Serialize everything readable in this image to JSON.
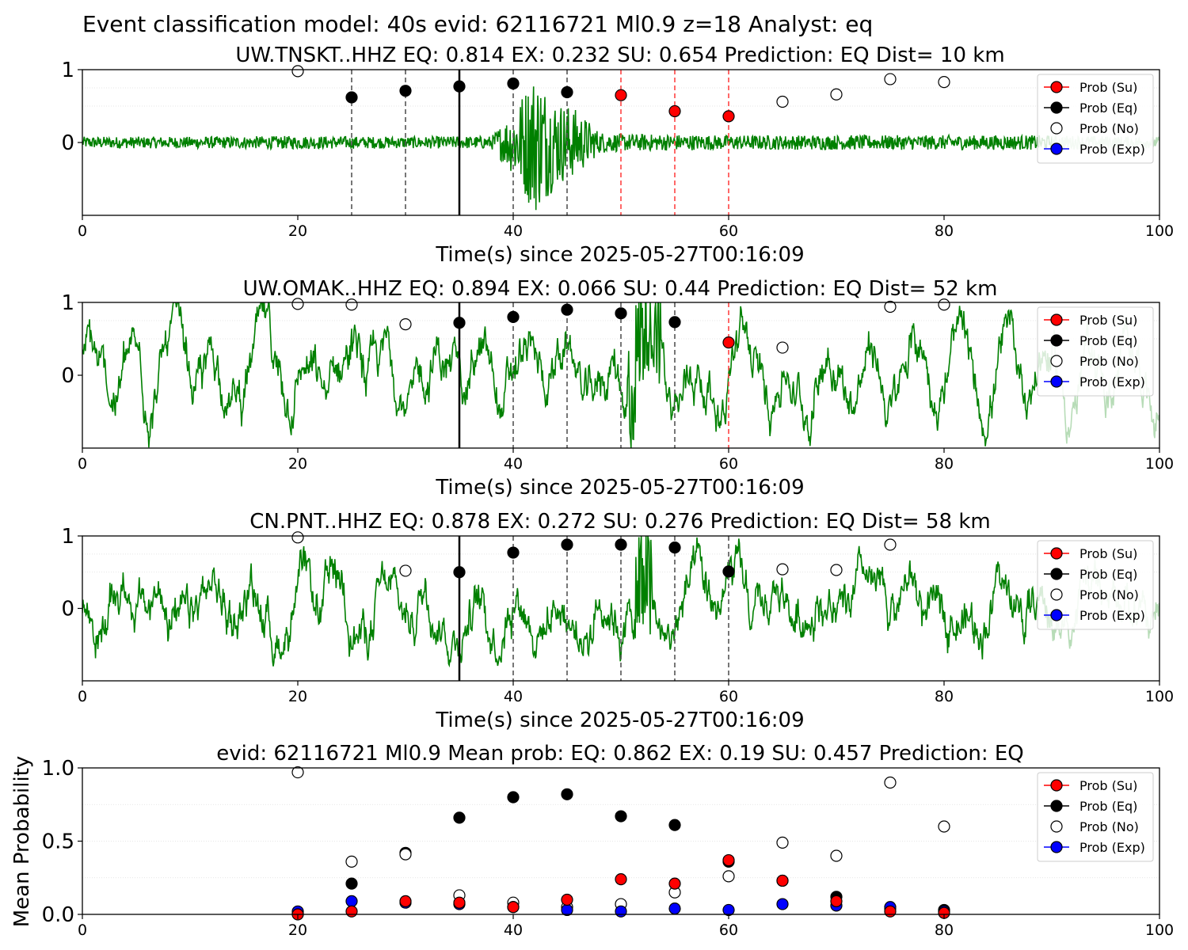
{
  "figure": {
    "suptitle": "Event classification model: 40s evid: 62116721 Ml0.9 z=18 Analyst: eq"
  },
  "legend": {
    "su": "Prob (Su)",
    "eq": "Prob (Eq)",
    "no": "Prob (No)",
    "exp": "Prob (Exp)"
  },
  "colors": {
    "waveform": "#008000",
    "waveform_faded": "#b7dcb7",
    "su": "#ff0000",
    "eq": "#000000",
    "no": "#ffffff",
    "exp": "#0000ff",
    "vline_eq": "#555555",
    "vline_su": "#ff4444"
  },
  "chart_data": [
    {
      "type": "line",
      "title": "UW.TNSKT..HHZ   EQ: 0.814  EX: 0.232  SU: 0.654   Prediction: EQ    Dist= 10 km",
      "xlabel": "Time(s) since 2025-05-27T00:16:09",
      "ylabel": "",
      "xlim": [
        0,
        100
      ],
      "ylim": [
        -1,
        1
      ],
      "xticks": [
        "0",
        "20",
        "40",
        "60",
        "80",
        "100"
      ],
      "yticks": [
        "1",
        "0"
      ],
      "legend_position": "upper right",
      "event_onset": 35,
      "vlines_eq": [
        25,
        30,
        40,
        45
      ],
      "vlines_su": [
        50,
        55,
        60
      ],
      "waveform_envelope": [
        [
          0,
          0.08
        ],
        [
          10,
          0.08
        ],
        [
          20,
          0.09
        ],
        [
          30,
          0.08
        ],
        [
          38,
          0.09
        ],
        [
          40,
          0.45
        ],
        [
          42,
          1.0
        ],
        [
          44,
          0.6
        ],
        [
          46,
          0.45
        ],
        [
          48,
          0.15
        ],
        [
          50,
          0.12
        ],
        [
          60,
          0.1
        ],
        [
          75,
          0.1
        ],
        [
          90,
          0.1
        ],
        [
          100,
          0.08
        ]
      ],
      "series": [
        {
          "name": "Prob (Su)",
          "color": "#ff0000",
          "points": [
            [
              50,
              0.65
            ],
            [
              55,
              0.43
            ],
            [
              60,
              0.36
            ]
          ]
        },
        {
          "name": "Prob (Eq)",
          "color": "#000000",
          "points": [
            [
              25,
              0.62
            ],
            [
              30,
              0.71
            ],
            [
              35,
              0.77
            ],
            [
              40,
              0.81
            ],
            [
              45,
              0.69
            ]
          ]
        },
        {
          "name": "Prob (No)",
          "color": "#ffffff",
          "points": [
            [
              20,
              0.98
            ],
            [
              65,
              0.56
            ],
            [
              70,
              0.66
            ],
            [
              75,
              0.87
            ],
            [
              80,
              0.83
            ]
          ]
        },
        {
          "name": "Prob (Exp)",
          "color": "#0000ff",
          "points": []
        }
      ]
    },
    {
      "type": "line",
      "title": "UW.OMAK..HHZ   EQ: 0.894  EX: 0.066  SU: 0.44   Prediction: EQ    Dist= 52 km",
      "xlabel": "Time(s) since 2025-05-27T00:16:09",
      "ylabel": "",
      "xlim": [
        0,
        100
      ],
      "ylim": [
        -1,
        1
      ],
      "xticks": [
        "0",
        "20",
        "40",
        "60",
        "80",
        "100"
      ],
      "yticks": [
        "1",
        "0"
      ],
      "legend_position": "upper right",
      "event_onset": 35,
      "vlines_eq": [
        40,
        45,
        50,
        55
      ],
      "vlines_su": [
        60
      ],
      "waveform_envelope": [
        [
          0,
          0.6
        ],
        [
          20,
          0.65
        ],
        [
          40,
          0.6
        ],
        [
          50,
          0.7
        ],
        [
          51,
          1.0
        ],
        [
          53,
          0.9
        ],
        [
          56,
          0.7
        ],
        [
          70,
          0.75
        ],
        [
          90,
          0.75
        ],
        [
          100,
          0.6
        ]
      ],
      "series": [
        {
          "name": "Prob (Su)",
          "color": "#ff0000",
          "points": [
            [
              60,
              0.45
            ]
          ]
        },
        {
          "name": "Prob (Eq)",
          "color": "#000000",
          "points": [
            [
              35,
              0.72
            ],
            [
              40,
              0.8
            ],
            [
              45,
              0.9
            ],
            [
              50,
              0.85
            ],
            [
              55,
              0.73
            ]
          ]
        },
        {
          "name": "Prob (No)",
          "color": "#ffffff",
          "points": [
            [
              20,
              0.98
            ],
            [
              25,
              0.97
            ],
            [
              30,
              0.7
            ],
            [
              65,
              0.38
            ],
            [
              75,
              0.94
            ],
            [
              80,
              0.97
            ]
          ]
        },
        {
          "name": "Prob (Exp)",
          "color": "#0000ff",
          "points": []
        }
      ]
    },
    {
      "type": "line",
      "title": "CN.PNT..HHZ   EQ: 0.878  EX: 0.272  SU: 0.276   Prediction: EQ    Dist= 58 km",
      "xlabel": "Time(s) since 2025-05-27T00:16:09",
      "ylabel": "",
      "xlim": [
        0,
        100
      ],
      "ylim": [
        -1,
        1
      ],
      "xticks": [
        "0",
        "20",
        "40",
        "60",
        "80",
        "100"
      ],
      "yticks": [
        "1",
        "0"
      ],
      "legend_position": "upper right",
      "event_onset": 35,
      "vlines_eq": [
        40,
        45,
        50,
        55,
        60
      ],
      "vlines_su": [],
      "waveform_envelope": [
        [
          0,
          0.45
        ],
        [
          20,
          0.5
        ],
        [
          40,
          0.5
        ],
        [
          50,
          0.55
        ],
        [
          52,
          1.0
        ],
        [
          54,
          0.7
        ],
        [
          58,
          0.5
        ],
        [
          80,
          0.45
        ],
        [
          100,
          0.45
        ]
      ],
      "series": [
        {
          "name": "Prob (Su)",
          "color": "#ff0000",
          "points": []
        },
        {
          "name": "Prob (Eq)",
          "color": "#000000",
          "points": [
            [
              35,
              0.5
            ],
            [
              40,
              0.77
            ],
            [
              45,
              0.88
            ],
            [
              50,
              0.88
            ],
            [
              55,
              0.84
            ],
            [
              60,
              0.51
            ]
          ]
        },
        {
          "name": "Prob (No)",
          "color": "#ffffff",
          "points": [
            [
              20,
              0.98
            ],
            [
              30,
              0.52
            ],
            [
              65,
              0.54
            ],
            [
              70,
              0.53
            ],
            [
              75,
              0.88
            ]
          ]
        },
        {
          "name": "Prob (Exp)",
          "color": "#0000ff",
          "points": []
        }
      ]
    },
    {
      "type": "scatter",
      "title": "evid: 62116721  Ml0.9   Mean prob:   EQ: 0.862  EX: 0.19  SU: 0.457   Prediction: EQ",
      "xlabel": "",
      "ylabel": "Mean Probability",
      "xlim": [
        0,
        100
      ],
      "ylim": [
        0,
        1
      ],
      "xticks": [
        "0",
        "20",
        "40",
        "60",
        "80",
        "100"
      ],
      "yticks": [
        "1.0",
        "0.5",
        "0.0"
      ],
      "legend_position": "upper right",
      "series": [
        {
          "name": "Prob (Eq)",
          "color": "#000000",
          "points": [
            [
              20,
              0.01
            ],
            [
              25,
              0.21
            ],
            [
              30,
              0.42
            ],
            [
              35,
              0.66
            ],
            [
              40,
              0.8
            ],
            [
              45,
              0.82
            ],
            [
              50,
              0.67
            ],
            [
              55,
              0.61
            ],
            [
              60,
              0.36
            ],
            [
              65,
              0.23
            ],
            [
              70,
              0.12
            ],
            [
              75,
              0.04
            ],
            [
              80,
              0.03
            ]
          ]
        },
        {
          "name": "Prob (No)",
          "color": "#ffffff",
          "points": [
            [
              20,
              0.97
            ],
            [
              25,
              0.36
            ],
            [
              30,
              0.41
            ],
            [
              35,
              0.13
            ],
            [
              40,
              0.08
            ],
            [
              45,
              0.05
            ],
            [
              50,
              0.07
            ],
            [
              55,
              0.15
            ],
            [
              60,
              0.26
            ],
            [
              65,
              0.49
            ],
            [
              70,
              0.4
            ],
            [
              75,
              0.9
            ],
            [
              80,
              0.6
            ]
          ]
        },
        {
          "name": "Prob (Exp)",
          "color": "#0000ff",
          "points": [
            [
              20,
              0.02
            ],
            [
              25,
              0.09
            ],
            [
              30,
              0.08
            ],
            [
              35,
              0.07
            ],
            [
              40,
              0.05
            ],
            [
              45,
              0.03
            ],
            [
              50,
              0.02
            ],
            [
              55,
              0.04
            ],
            [
              60,
              0.03
            ],
            [
              65,
              0.07
            ],
            [
              70,
              0.06
            ],
            [
              75,
              0.05
            ],
            [
              80,
              0.02
            ]
          ]
        },
        {
          "name": "Prob (Su)",
          "color": "#ff0000",
          "points": [
            [
              20,
              0.0
            ],
            [
              25,
              0.02
            ],
            [
              30,
              0.09
            ],
            [
              35,
              0.08
            ],
            [
              40,
              0.05
            ],
            [
              45,
              0.1
            ],
            [
              50,
              0.24
            ],
            [
              55,
              0.21
            ],
            [
              60,
              0.37
            ],
            [
              65,
              0.23
            ],
            [
              70,
              0.09
            ],
            [
              75,
              0.02
            ],
            [
              80,
              0.01
            ]
          ]
        }
      ]
    }
  ]
}
